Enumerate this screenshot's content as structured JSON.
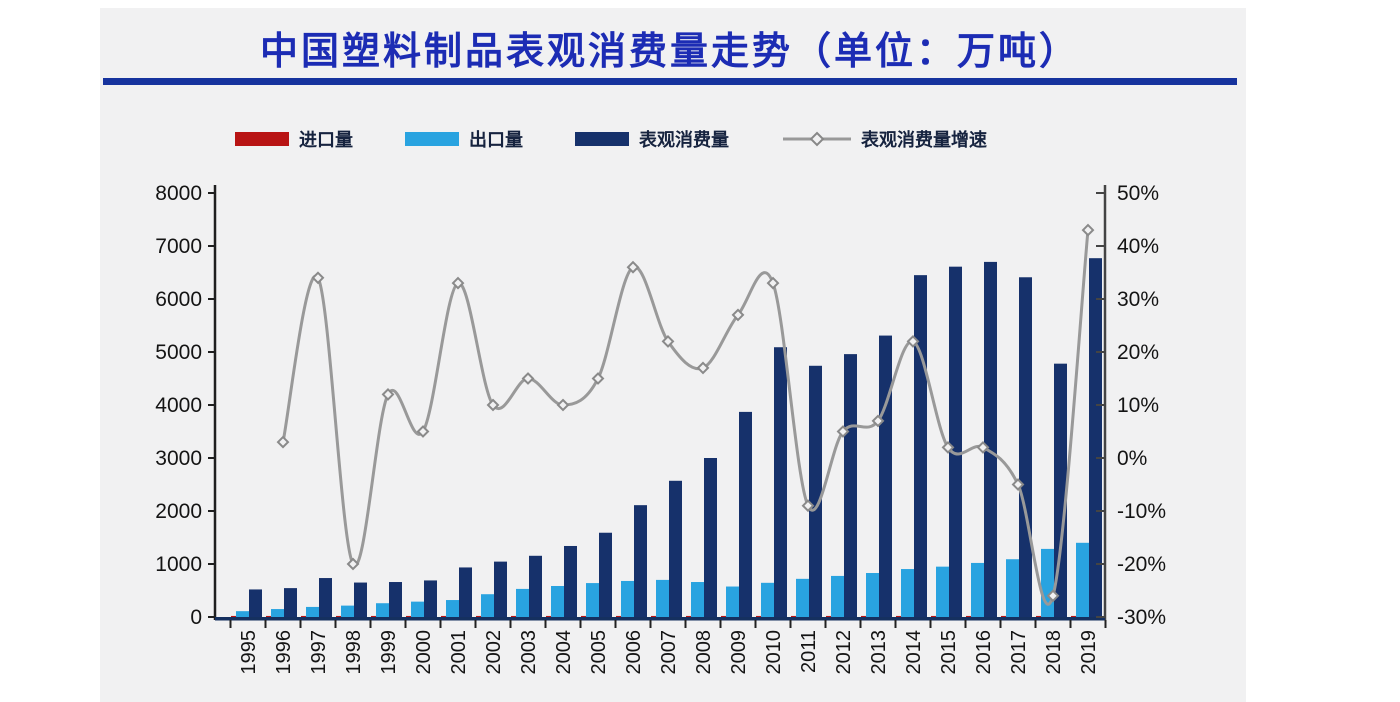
{
  "title": "中国塑料制品表观消费量走势（单位：万吨）",
  "colors": {
    "title_blue": "#1c2cb4",
    "underline_blue": "#16339e",
    "panel_bg": "#f1f1f2",
    "import_red": "#b81414",
    "export_blue": "#29a3e0",
    "consumption_navy": "#16316b",
    "growth_line_gray": "#999999",
    "axis_dark": "#1f1f1f",
    "baseline_navy": "#15305f"
  },
  "legend": {
    "items": [
      {
        "label": "进口量",
        "type": "bar",
        "color": "#b81414"
      },
      {
        "label": "出口量",
        "type": "bar",
        "color": "#29a3e0"
      },
      {
        "label": "表观消费量",
        "type": "bar",
        "color": "#16316b"
      },
      {
        "label": "表观消费量增速",
        "type": "line",
        "color": "#999999"
      }
    ]
  },
  "chart_data": {
    "type": "bar",
    "title": "中国塑料制品表观消费量走势（单位：万吨）",
    "categories": [
      "1995",
      "1996",
      "1997",
      "1998",
      "1999",
      "2000",
      "2001",
      "2002",
      "2003",
      "2004",
      "2005",
      "2006",
      "2007",
      "2008",
      "2009",
      "2010",
      "2011",
      "2012",
      "2013",
      "2014",
      "2015",
      "2016",
      "2017",
      "2018",
      "2019"
    ],
    "series": [
      {
        "name": "进口量",
        "type": "bar",
        "axis": "left",
        "color": "#b81414",
        "values": [
          20,
          20,
          20,
          20,
          20,
          20,
          20,
          20,
          20,
          20,
          20,
          20,
          20,
          20,
          20,
          20,
          20,
          20,
          20,
          20,
          20,
          20,
          20,
          20,
          20
        ]
      },
      {
        "name": "出口量",
        "type": "bar",
        "axis": "left",
        "color": "#29a3e0",
        "values": [
          110,
          150,
          190,
          215,
          260,
          290,
          320,
          430,
          530,
          585,
          640,
          680,
          700,
          660,
          575,
          645,
          720,
          775,
          830,
          905,
          950,
          1020,
          1090,
          1285,
          1400
        ]
      },
      {
        "name": "表观消费量",
        "type": "bar",
        "axis": "left",
        "color": "#16316b",
        "values": [
          520,
          545,
          735,
          650,
          660,
          690,
          935,
          1045,
          1155,
          1340,
          1590,
          2110,
          2570,
          3000,
          3870,
          5090,
          4740,
          4960,
          5310,
          6450,
          6610,
          6700,
          6410,
          4780,
          6770
        ]
      },
      {
        "name": "表观消费量增速",
        "type": "line",
        "axis": "right",
        "color": "#999999",
        "values": [
          null,
          3,
          34,
          -20,
          12,
          5,
          33,
          10,
          15,
          10,
          15,
          36,
          22,
          17,
          27,
          33,
          -9,
          5,
          7,
          22,
          2,
          2,
          -5,
          -26,
          43
        ]
      }
    ],
    "left_axis": {
      "min": 0,
      "max": 8000,
      "step": 1000,
      "ticks": [
        "0",
        "1000",
        "2000",
        "3000",
        "4000",
        "5000",
        "6000",
        "7000",
        "8000"
      ]
    },
    "right_axis": {
      "min": -30,
      "max": 50,
      "step": 10,
      "format": "percent",
      "ticks": [
        "-30%",
        "-20%",
        "-10%",
        "0%",
        "10%",
        "20%",
        "30%",
        "40%",
        "50%"
      ]
    },
    "grid": false,
    "legend_position": "top"
  }
}
